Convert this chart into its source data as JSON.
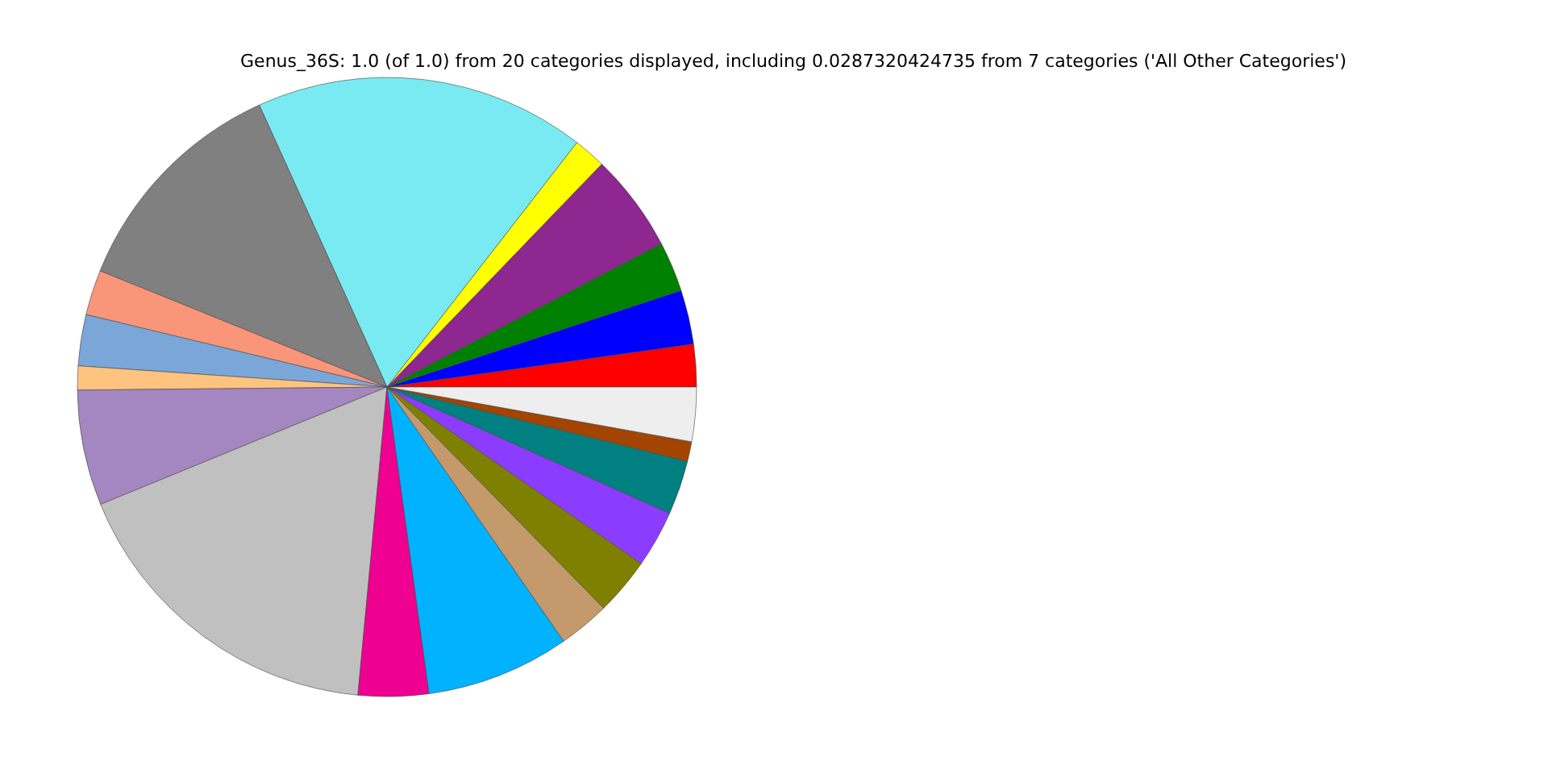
{
  "chart_data": {
    "type": "pie",
    "title": "Genus_36S: 1.0 (of 1.0) from 20 categories displayed, including 0.0287320424735 from 7 categories ('All Other Categories')",
    "categories": [
      null,
      null,
      null,
      null,
      null,
      null,
      null,
      null,
      null,
      null,
      null,
      null,
      null,
      null,
      null,
      null,
      null,
      null,
      null,
      null
    ],
    "values": [
      2.22,
      2.83,
      2.61,
      5.14,
      1.69,
      17.28,
      12.11,
      2.36,
      2.67,
      1.25,
      6.03,
      17.31,
      3.67,
      7.5,
      2.67,
      3.0,
      2.97,
      2.83,
      1.03,
      2.83
    ],
    "colors": [
      "#ff0000",
      "#0000ff",
      "#008000",
      "#8e278f",
      "#ffff00",
      "#7aeaf2",
      "#808080",
      "#f9967a",
      "#7ba7d8",
      "#ffc380",
      "#a487c0",
      "#c0c0c0",
      "#ee0090",
      "#00b2ff",
      "#c49a6c",
      "#808000",
      "#8b3dff",
      "#008080",
      "#a34400",
      "#eeeeee"
    ]
  }
}
